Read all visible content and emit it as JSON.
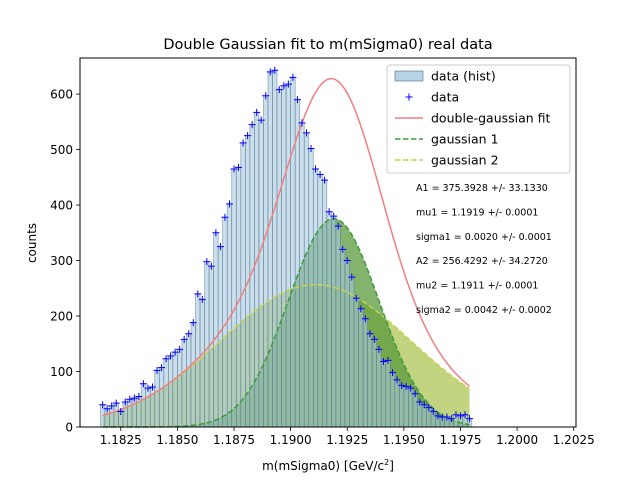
{
  "chart_data": {
    "type": "bar",
    "title": "Double Gaussian fit to m(mSigma0) real data",
    "xlabel_main": "m(mSigma0) [GeV/c",
    "xlabel_sup": "2",
    "xlabel_tail": "]",
    "ylabel": "counts",
    "xlim": [
      1.1807,
      1.2026
    ],
    "ylim": [
      0,
      665
    ],
    "x_ticks": [
      {
        "v": 1.1825,
        "label": "1.1825"
      },
      {
        "v": 1.185,
        "label": "1.1850"
      },
      {
        "v": 1.1875,
        "label": "1.1875"
      },
      {
        "v": 1.19,
        "label": "1.1900"
      },
      {
        "v": 1.1925,
        "label": "1.1925"
      },
      {
        "v": 1.195,
        "label": "1.1950"
      },
      {
        "v": 1.1975,
        "label": "1.1975"
      },
      {
        "v": 1.2,
        "label": "1.2000"
      },
      {
        "v": 1.2025,
        "label": "1.2025"
      }
    ],
    "y_ticks": [
      {
        "v": 0,
        "label": "0"
      },
      {
        "v": 100,
        "label": "100"
      },
      {
        "v": 200,
        "label": "200"
      },
      {
        "v": 300,
        "label": "300"
      },
      {
        "v": 400,
        "label": "400"
      },
      {
        "v": 500,
        "label": "500"
      },
      {
        "v": 600,
        "label": "600"
      }
    ],
    "bin_start": 1.1817,
    "bin_width": 0.0002,
    "counts": [
      40,
      33,
      38,
      43,
      28,
      45,
      50,
      52,
      55,
      78,
      70,
      72,
      102,
      107,
      123,
      128,
      135,
      140,
      158,
      168,
      188,
      240,
      230,
      298,
      290,
      350,
      325,
      378,
      402,
      465,
      468,
      512,
      525,
      545,
      567,
      553,
      597,
      640,
      643,
      608,
      615,
      618,
      630,
      590,
      548,
      530,
      502,
      465,
      455,
      445,
      388,
      380,
      362,
      320,
      300,
      270,
      232,
      213,
      195,
      168,
      158,
      140,
      118,
      120,
      98,
      85,
      75,
      73,
      70,
      60,
      45,
      40,
      35,
      28,
      20,
      18,
      18,
      15,
      22,
      20,
      22,
      15
    ],
    "fit": {
      "A1": 375.3928,
      "mu1": 1.1919,
      "sigma1": 0.002,
      "A2": 256.4292,
      "mu2": 1.1911,
      "sigma2": 0.0042
    },
    "colors": {
      "hist_fill": "#a6c8e0",
      "hist_edge": "#4a6f8a",
      "points": "#0000ff",
      "fit": "#f08080",
      "gauss1": "#3c9c3c",
      "gauss1_fill": "#5a9a3c",
      "gauss2": "#c8d050",
      "gauss2_fill": "#b8cc6a"
    },
    "legend_position": "top-right",
    "legend": [
      {
        "key": "hist",
        "label": "data (hist)"
      },
      {
        "key": "points",
        "label": "data"
      },
      {
        "key": "fit",
        "label": "double-gaussian fit"
      },
      {
        "key": "g1",
        "label": "gaussian 1"
      },
      {
        "key": "g2",
        "label": "gaussian 2"
      }
    ],
    "annotations": [
      "A1 = 375.3928 +/- 33.1330",
      "mu1 = 1.1919 +/- 0.0001",
      "sigma1 = 0.0020 +/- 0.0001",
      "A2 = 256.4292 +/- 34.2720",
      "mu2 = 1.1911 +/- 0.0001",
      "sigma2 = 0.0042 +/- 0.0002"
    ]
  }
}
